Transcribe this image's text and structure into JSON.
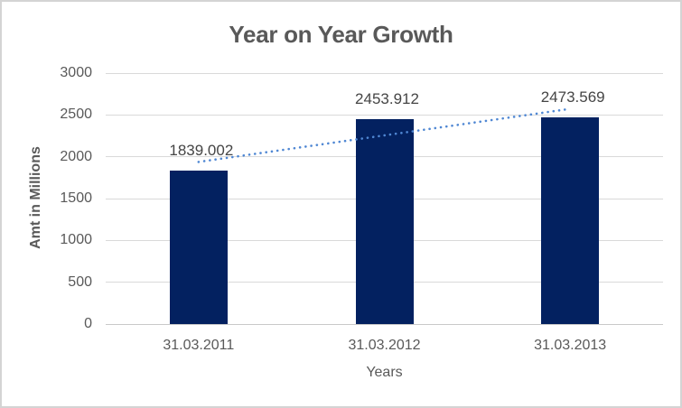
{
  "chart_data": {
    "type": "bar",
    "title": "Year on Year Growth",
    "xlabel": "Years",
    "ylabel": "Amt in Millions",
    "categories": [
      "31.03.2011",
      "31.03.2012",
      "31.03.2013"
    ],
    "values": [
      1839.002,
      2453.912,
      2473.569
    ],
    "data_labels": [
      "1839.002",
      "2453.912",
      "2473.569"
    ],
    "ylim": [
      0,
      3000
    ],
    "yticks": [
      0,
      500,
      1000,
      1500,
      2000,
      2500,
      3000
    ],
    "grid": true,
    "legend": "none",
    "trendline": {
      "type": "linear",
      "style": "dotted",
      "span": "first-to-last-category"
    },
    "colors": {
      "bar": "#032160",
      "trendline": "#4f87d3",
      "gridline": "#d9d9d9",
      "axis_line": "#c9c9c9",
      "tick_text": "#595959",
      "data_label_text": "#454545",
      "title_text": "#595959",
      "border": "#d4d4d4",
      "background": "#ffffff"
    }
  }
}
